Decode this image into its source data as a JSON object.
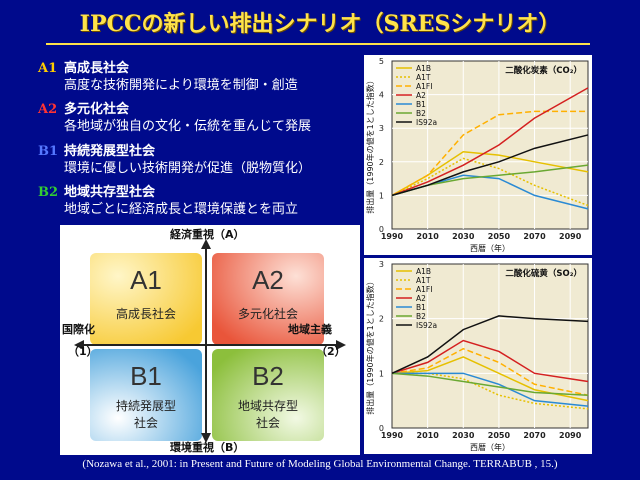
{
  "title": "IPCCの新しい排出シナリオ（SRESシナリオ）",
  "scenarios": [
    {
      "code": "A1",
      "name": "高成長社会",
      "desc": "高度な技術開発により環境を制御・創造",
      "color": "#ffcc00"
    },
    {
      "code": "A2",
      "name": "多元化社会",
      "desc": "各地域が独自の文化・伝統を重んじて発展",
      "color": "#ff3333"
    },
    {
      "code": "B1",
      "name": "持続発展型社会",
      "desc": "環境に優しい技術開発が促進（脱物質化）",
      "color": "#5577ff"
    },
    {
      "code": "B2",
      "name": "地域共存型社会",
      "desc": "地域ごとに経済成長と環境保護とを両立",
      "color": "#33cc33"
    }
  ],
  "quadrant": {
    "top": "経済重視（A）",
    "bottom": "環境重視（B）",
    "left": "国際化",
    "left_num": "（1）",
    "right": "地域主義",
    "right_num": "（2）",
    "cells": [
      {
        "code": "A1",
        "label": "高成長社会"
      },
      {
        "code": "A2",
        "label": "多元化社会"
      },
      {
        "code": "B1",
        "label": "持続発展型\n社会"
      },
      {
        "code": "B2",
        "label": "地域共存型\n社会"
      }
    ],
    "cell_colors": {
      "A1": "#f7c932",
      "A2": "#e9553a",
      "B1": "#4aa3dc",
      "B2": "#8cbf3c"
    }
  },
  "chart_data": [
    {
      "type": "line",
      "title": "二酸化炭素（CO₂）",
      "ylabel": "排出量（1990年の値を1とした指数）",
      "xlabel": "西暦（年）",
      "x": [
        1990,
        2010,
        2030,
        2050,
        2070,
        2090
      ],
      "xticks": [
        1990,
        2010,
        2030,
        2050,
        2070,
        2090
      ],
      "xlim": [
        1990,
        2100
      ],
      "ylim": [
        0,
        5
      ],
      "yticks": [
        0,
        1,
        2,
        3,
        4,
        5
      ],
      "series": [
        {
          "name": "A1B",
          "color": "#e6c000",
          "dash": "",
          "x": [
            1990,
            2010,
            2030,
            2050,
            2070,
            2100
          ],
          "values": [
            1.0,
            1.6,
            2.3,
            2.2,
            2.0,
            1.7
          ]
        },
        {
          "name": "A1T",
          "color": "#e6c000",
          "dash": "2,2",
          "x": [
            1990,
            2010,
            2030,
            2050,
            2070,
            2100
          ],
          "values": [
            1.0,
            1.5,
            2.1,
            1.8,
            1.3,
            0.7
          ]
        },
        {
          "name": "A1FI",
          "color": "#ffb000",
          "dash": "6,3",
          "x": [
            1990,
            2010,
            2030,
            2050,
            2070,
            2100
          ],
          "values": [
            1.0,
            1.6,
            2.8,
            3.4,
            3.5,
            3.5
          ]
        },
        {
          "name": "A2",
          "color": "#d42020",
          "dash": "",
          "x": [
            1990,
            2010,
            2030,
            2050,
            2070,
            2100
          ],
          "values": [
            1.0,
            1.4,
            1.9,
            2.5,
            3.3,
            4.2
          ]
        },
        {
          "name": "B1",
          "color": "#2a8ad4",
          "dash": "",
          "x": [
            1990,
            2010,
            2030,
            2050,
            2070,
            2100
          ],
          "values": [
            1.0,
            1.3,
            1.6,
            1.5,
            1.0,
            0.6
          ]
        },
        {
          "name": "B2",
          "color": "#6aa832",
          "dash": "",
          "x": [
            1990,
            2010,
            2030,
            2050,
            2070,
            2100
          ],
          "values": [
            1.0,
            1.3,
            1.5,
            1.6,
            1.7,
            1.9
          ]
        },
        {
          "name": "IS92a",
          "color": "#111111",
          "dash": "",
          "x": [
            1990,
            2010,
            2030,
            2050,
            2070,
            2100
          ],
          "values": [
            1.0,
            1.3,
            1.7,
            2.0,
            2.4,
            2.8
          ]
        }
      ]
    },
    {
      "type": "line",
      "title": "二酸化硫黄（SO₂）",
      "ylabel": "排出量（1990年の値を1とした指数）",
      "xlabel": "西暦（年）",
      "x": [
        1990,
        2010,
        2030,
        2050,
        2070,
        2090
      ],
      "xticks": [
        1990,
        2010,
        2030,
        2050,
        2070,
        2090
      ],
      "xlim": [
        1990,
        2100
      ],
      "ylim": [
        0,
        3
      ],
      "yticks": [
        0,
        1,
        2,
        3
      ],
      "series": [
        {
          "name": "A1B",
          "color": "#e6c000",
          "dash": "",
          "x": [
            1990,
            2010,
            2030,
            2050,
            2070,
            2100
          ],
          "values": [
            1.0,
            1.05,
            1.3,
            1.0,
            0.7,
            0.5
          ]
        },
        {
          "name": "A1T",
          "color": "#e6c000",
          "dash": "2,2",
          "x": [
            1990,
            2010,
            2030,
            2050,
            2070,
            2100
          ],
          "values": [
            1.0,
            1.0,
            0.9,
            0.6,
            0.45,
            0.35
          ]
        },
        {
          "name": "A1FI",
          "color": "#ffb000",
          "dash": "6,3",
          "x": [
            1990,
            2010,
            2030,
            2050,
            2070,
            2100
          ],
          "values": [
            1.0,
            1.1,
            1.45,
            1.2,
            0.8,
            0.6
          ]
        },
        {
          "name": "A2",
          "color": "#d42020",
          "dash": "",
          "x": [
            1990,
            2010,
            2030,
            2050,
            2070,
            2100
          ],
          "values": [
            1.0,
            1.2,
            1.6,
            1.4,
            1.0,
            0.85
          ]
        },
        {
          "name": "B1",
          "color": "#2a8ad4",
          "dash": "",
          "x": [
            1990,
            2010,
            2030,
            2050,
            2070,
            2100
          ],
          "values": [
            1.0,
            1.0,
            1.0,
            0.8,
            0.5,
            0.4
          ]
        },
        {
          "name": "B2",
          "color": "#6aa832",
          "dash": "",
          "x": [
            1990,
            2010,
            2030,
            2050,
            2070,
            2100
          ],
          "values": [
            1.0,
            0.95,
            0.85,
            0.75,
            0.65,
            0.6
          ]
        },
        {
          "name": "IS92a",
          "color": "#111111",
          "dash": "",
          "x": [
            1990,
            2010,
            2030,
            2050,
            2070,
            2100
          ],
          "values": [
            1.0,
            1.3,
            1.8,
            2.05,
            2.0,
            1.95
          ]
        }
      ]
    }
  ],
  "citation": "(Nozawa et al., 2001: in Present and Future of Modeling Global Environmental Change. TERRABUB , 15.)"
}
